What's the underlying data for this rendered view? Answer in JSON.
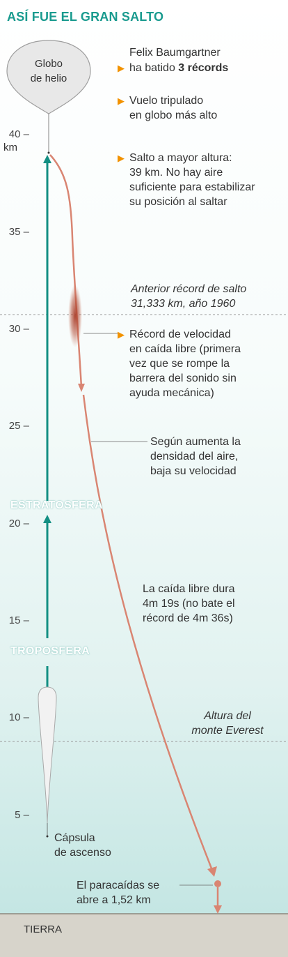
{
  "title": "ASÍ FUE EL GRAN SALTO",
  "balloon_label": [
    "Globo",
    "de helio"
  ],
  "axis": {
    "unit": "km",
    "ticks": [
      "40 –",
      "35 –",
      "30 –",
      "25 –",
      "20 –",
      "15 –",
      "10 –",
      "5 –"
    ]
  },
  "records": {
    "intro": [
      "Felix Baumgartner",
      "ha batido "
    ],
    "intro_bold": "3 récords",
    "record1": [
      "Vuelo tripulado",
      "en globo más alto"
    ],
    "record2": [
      "Salto a mayor altura:",
      "39 km. No hay aire",
      "suficiente para estabilizar",
      "su posición al saltar"
    ],
    "record3": [
      "Récord de velocidad",
      "en caída libre (primera",
      "vez que se rompe la",
      "barrera del sonido sin",
      "ayuda mecánica)"
    ]
  },
  "previous_record": [
    "Anterior récord de salto",
    "31,333 km, año 1960"
  ],
  "density_note": [
    "Según aumenta la",
    "densidad del aire,",
    "baja su velocidad"
  ],
  "stratosphere": "ESTRATOSFERA",
  "troposphere": "TROPOSFERA",
  "freefall_note": [
    "La caída libre dura",
    "4m 19s (no bate el",
    "récord de 4m 36s)"
  ],
  "everest": [
    "Altura del",
    "monte Everest"
  ],
  "capsule": [
    "Cápsula",
    "de ascenso"
  ],
  "parachute": [
    "El paracaídas se",
    "abre a 1,52 km"
  ],
  "ground": "TIERRA",
  "colors": {
    "title": "#1a9b8f",
    "ascent_line": "#138f83",
    "fall_line": "#d98572",
    "bullet": "#f29200",
    "ground": "#d7d4cb",
    "sky_low": "#c4e6e3"
  }
}
